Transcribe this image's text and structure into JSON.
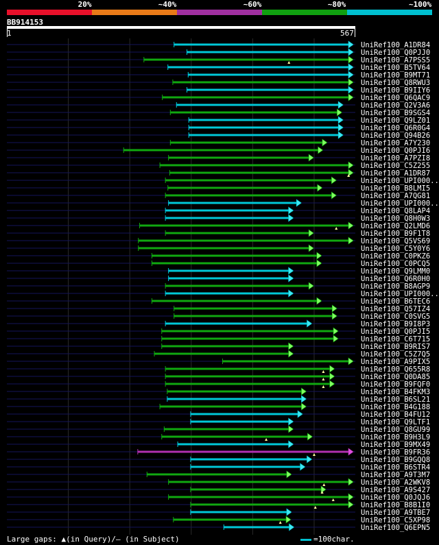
{
  "legend": {
    "labels": [
      "20%",
      "~40%",
      "~60%",
      "~80%",
      "~100%"
    ],
    "colors": [
      "#e8102a",
      "#e87a18",
      "#a030a0",
      "#10a010",
      "#00c0d0"
    ]
  },
  "query": {
    "name": "BB914153",
    "start": "1",
    "end": "567",
    "length": 567
  },
  "footer": {
    "gaps_text": "Large gaps: ▲(in Query)/– (in Subject)",
    "scale_text": "=100char."
  },
  "hits": [
    {
      "label": "UniRef100_A1DR84",
      "start": 272,
      "end": 567,
      "color": "cyan",
      "gaps": []
    },
    {
      "label": "UniRef100_Q0PJJ0",
      "start": 293,
      "end": 567,
      "color": "cyan",
      "gaps": []
    },
    {
      "label": "UniRef100_A7PSS5",
      "start": 223,
      "end": 567,
      "color": "green",
      "gaps": [
        459
      ]
    },
    {
      "label": "UniRef100_B5TV64",
      "start": 262,
      "end": 567,
      "color": "cyan",
      "gaps": []
    },
    {
      "label": "UniRef100_B9MT71",
      "start": 295,
      "end": 565,
      "color": "cyan",
      "gaps": []
    },
    {
      "label": "UniRef100_Q8RWU3",
      "start": 270,
      "end": 565,
      "color": "green",
      "gaps": []
    },
    {
      "label": "UniRef100_B9IIY6",
      "start": 293,
      "end": 565,
      "color": "cyan",
      "gaps": []
    },
    {
      "label": "UniRef100_Q6QAC9",
      "start": 253,
      "end": 567,
      "color": "green",
      "gaps": []
    },
    {
      "label": "UniRef100_Q2V3A6",
      "start": 276,
      "end": 546,
      "color": "cyan",
      "gaps": []
    },
    {
      "label": "UniRef100_B9SGS4",
      "start": 266,
      "end": 544,
      "color": "green",
      "gaps": []
    },
    {
      "label": "UniRef100_Q9LZ01",
      "start": 296,
      "end": 546,
      "color": "cyan",
      "gaps": []
    },
    {
      "label": "UniRef100_Q6R0G4",
      "start": 296,
      "end": 546,
      "color": "cyan",
      "gaps": []
    },
    {
      "label": "UniRef100_Q94B26",
      "start": 296,
      "end": 546,
      "color": "cyan",
      "gaps": []
    },
    {
      "label": "UniRef100_A7Y230",
      "start": 266,
      "end": 520,
      "color": "green",
      "gaps": []
    },
    {
      "label": "UniRef100_Q0PJI6",
      "start": 190,
      "end": 513,
      "color": "green",
      "gaps": []
    },
    {
      "label": "UniRef100_A7PZI8",
      "start": 263,
      "end": 498,
      "color": "green",
      "gaps": []
    },
    {
      "label": "UniRef100_C5Z255",
      "start": 249,
      "end": 570,
      "color": "green",
      "gaps": []
    },
    {
      "label": "UniRef100_A1DR87",
      "start": 265,
      "end": 568,
      "color": "green",
      "gaps": [
        556
      ]
    },
    {
      "label": "UniRef100_UPI000..",
      "start": 258,
      "end": 535,
      "color": "green",
      "gaps": []
    },
    {
      "label": "UniRef100_B8LMI5",
      "start": 262,
      "end": 512,
      "color": "green",
      "gaps": []
    },
    {
      "label": "UniRef100_A7QG81",
      "start": 258,
      "end": 535,
      "color": "green",
      "gaps": []
    },
    {
      "label": "UniRef100_UPI000..",
      "start": 263,
      "end": 478,
      "color": "cyan",
      "gaps": []
    },
    {
      "label": "UniRef100_Q8LAP4",
      "start": 258,
      "end": 465,
      "color": "cyan",
      "gaps": []
    },
    {
      "label": "UniRef100_Q8H0W3",
      "start": 258,
      "end": 465,
      "color": "cyan",
      "gaps": []
    },
    {
      "label": "UniRef100_Q2LMD6",
      "start": 216,
      "end": 568,
      "color": "green",
      "gaps": [
        536
      ]
    },
    {
      "label": "UniRef100_B9F1T8",
      "start": 258,
      "end": 498,
      "color": "green",
      "gaps": []
    },
    {
      "label": "UniRef100_Q5VS69",
      "start": 214,
      "end": 568,
      "color": "green",
      "gaps": []
    },
    {
      "label": "UniRef100_C5Y0Y6",
      "start": 214,
      "end": 498,
      "color": "green",
      "gaps": []
    },
    {
      "label": "UniRef100_C0PKZ6",
      "start": 236,
      "end": 511,
      "color": "green",
      "gaps": []
    },
    {
      "label": "UniRef100_C0PCQ5",
      "start": 236,
      "end": 511,
      "color": "green",
      "gaps": []
    },
    {
      "label": "UniRef100_Q9LMM0",
      "start": 263,
      "end": 465,
      "color": "cyan",
      "gaps": []
    },
    {
      "label": "UniRef100_Q6R0H0",
      "start": 263,
      "end": 465,
      "color": "cyan",
      "gaps": []
    },
    {
      "label": "UniRef100_B8AGP9",
      "start": 258,
      "end": 498,
      "color": "green",
      "gaps": []
    },
    {
      "label": "UniRef100_UPI000..",
      "start": 258,
      "end": 465,
      "color": "cyan",
      "gaps": []
    },
    {
      "label": "UniRef100_B6TEC6",
      "start": 236,
      "end": 511,
      "color": "green",
      "gaps": []
    },
    {
      "label": "UniRef100_Q57IZ4",
      "start": 272,
      "end": 536,
      "color": "green",
      "gaps": []
    },
    {
      "label": "UniRef100_C0SVG5",
      "start": 272,
      "end": 536,
      "color": "green",
      "gaps": []
    },
    {
      "label": "UniRef100_B9I8P3",
      "start": 258,
      "end": 495,
      "color": "cyan",
      "gaps": []
    },
    {
      "label": "UniRef100_Q0PJI5",
      "start": 252,
      "end": 538,
      "color": "green",
      "gaps": []
    },
    {
      "label": "UniRef100_C6T715",
      "start": 252,
      "end": 538,
      "color": "green",
      "gaps": []
    },
    {
      "label": "UniRef100_B9RIS7",
      "start": 252,
      "end": 465,
      "color": "green",
      "gaps": []
    },
    {
      "label": "UniRef100_C5Z7Q5",
      "start": 240,
      "end": 465,
      "color": "green",
      "gaps": []
    },
    {
      "label": "UniRef100_A9PIX5",
      "start": 351,
      "end": 565,
      "color": "green",
      "gaps": []
    },
    {
      "label": "UniRef100_Q655R8",
      "start": 258,
      "end": 532,
      "color": "green",
      "gaps": [
        515
      ]
    },
    {
      "label": "UniRef100_Q0DA85",
      "start": 258,
      "end": 532,
      "color": "green",
      "gaps": [
        515
      ]
    },
    {
      "label": "UniRef100_B9FQF0",
      "start": 258,
      "end": 532,
      "color": "green",
      "gaps": [
        515
      ]
    },
    {
      "label": "UniRef100_B4FKM3",
      "start": 261,
      "end": 486,
      "color": "green",
      "gaps": []
    },
    {
      "label": "UniRef100_B6SL21",
      "start": 261,
      "end": 486,
      "color": "cyan",
      "gaps": []
    },
    {
      "label": "UniRef100_B4G188",
      "start": 249,
      "end": 486,
      "color": "green",
      "gaps": []
    },
    {
      "label": "UniRef100_B4FU12",
      "start": 299,
      "end": 480,
      "color": "cyan",
      "gaps": []
    },
    {
      "label": "UniRef100_Q9LTF1",
      "start": 299,
      "end": 465,
      "color": "cyan",
      "gaps": []
    },
    {
      "label": "UniRef100_Q8GU99",
      "start": 256,
      "end": 465,
      "color": "green",
      "gaps": []
    },
    {
      "label": "UniRef100_B9H3L9",
      "start": 252,
      "end": 496,
      "color": "green",
      "gaps": [
        422
      ]
    },
    {
      "label": "UniRef100_B9MX49",
      "start": 278,
      "end": 465,
      "color": "cyan",
      "gaps": []
    },
    {
      "label": "UniRef100_B9FR36",
      "start": 213,
      "end": 570,
      "color": "purple",
      "gaps": [
        500
      ]
    },
    {
      "label": "UniRef100_B9GQQ8",
      "start": 299,
      "end": 495,
      "color": "cyan",
      "gaps": []
    },
    {
      "label": "UniRef100_B6STR4",
      "start": 299,
      "end": 484,
      "color": "cyan",
      "gaps": []
    },
    {
      "label": "UniRef100_A9T3M7",
      "start": 228,
      "end": 462,
      "color": "green",
      "gaps": []
    },
    {
      "label": "UniRef100_A2WKV8",
      "start": 263,
      "end": 565,
      "color": "green",
      "gaps": [
        516
      ]
    },
    {
      "label": "UniRef100_A9S427",
      "start": 299,
      "end": 518,
      "color": "green",
      "gaps": [
        513
      ]
    },
    {
      "label": "UniRef100_Q0JQJ6",
      "start": 263,
      "end": 565,
      "color": "green",
      "gaps": [
        531
      ]
    },
    {
      "label": "UniRef100_B8B1I0",
      "start": 299,
      "end": 567,
      "color": "green",
      "gaps": [
        502
      ]
    },
    {
      "label": "UniRef100_A9TBE7",
      "start": 299,
      "end": 462,
      "color": "cyan",
      "gaps": []
    },
    {
      "label": "UniRef100_C5XP98",
      "start": 271,
      "end": 461,
      "color": "green",
      "gaps": [
        445
      ]
    },
    {
      "label": "UniRef100_Q6EPN5",
      "start": 353,
      "end": 466,
      "color": "cyan",
      "gaps": []
    }
  ]
}
